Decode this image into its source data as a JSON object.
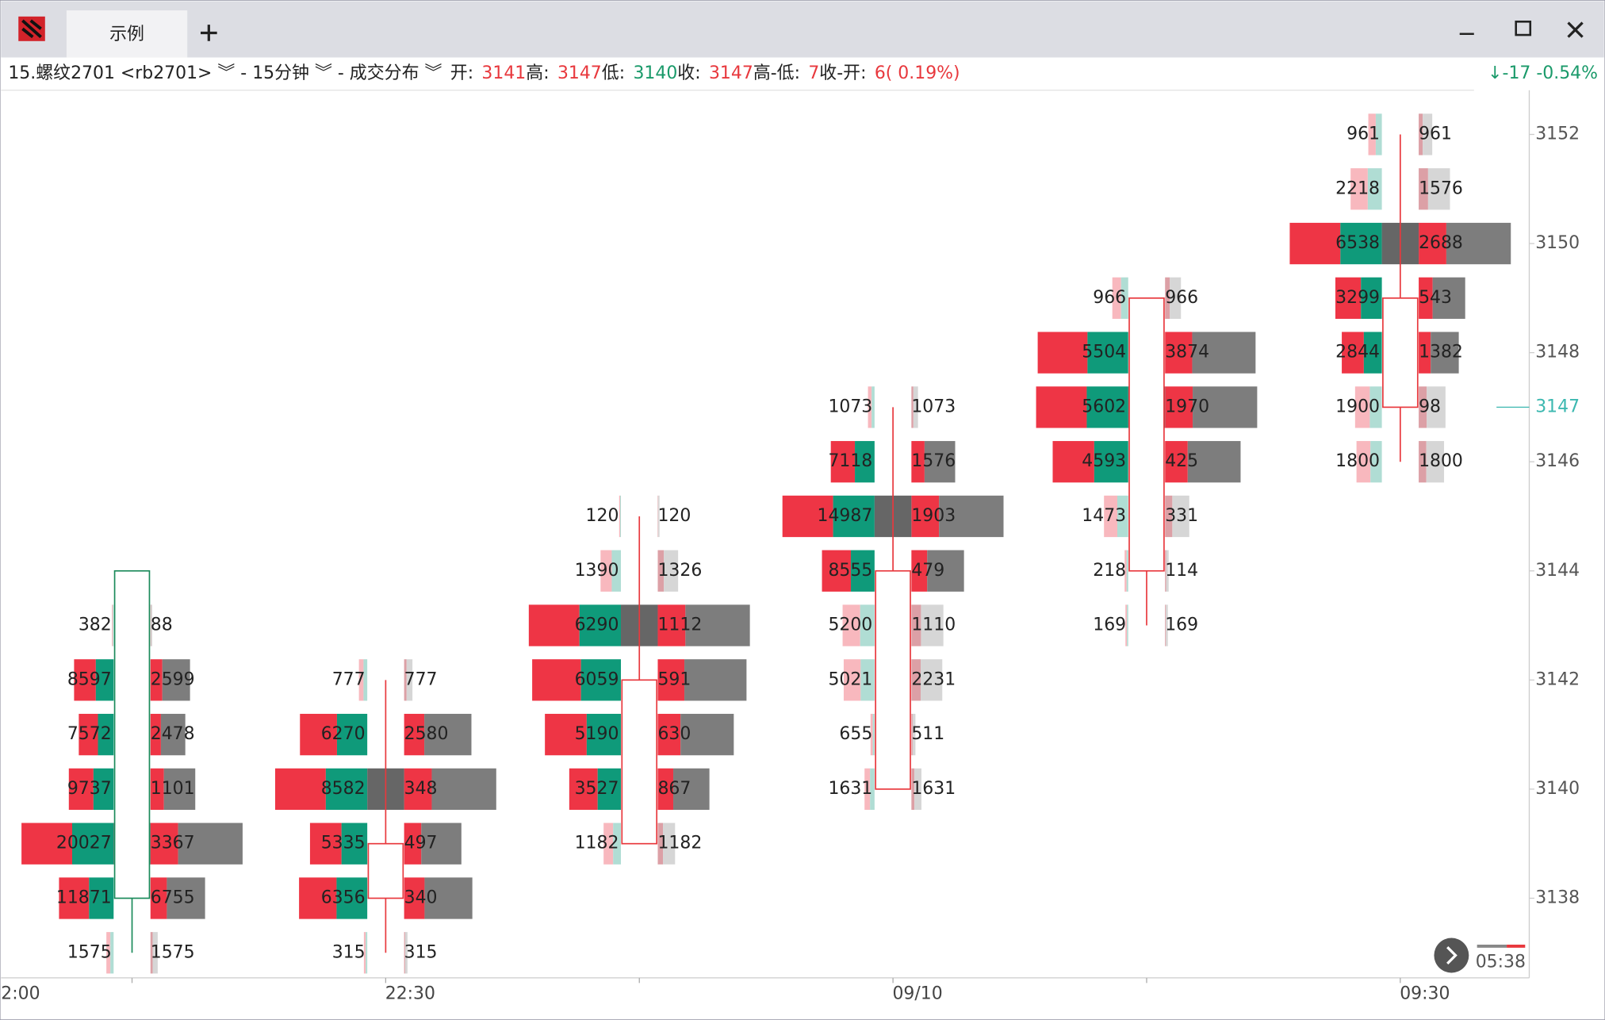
{
  "app": {
    "tab": "示例",
    "header": {
      "symbol": "15.螺纹2701 <rb2701> ︾ - 15分钟 ︾ - 成交分布 ︾",
      "open_label": "开:",
      "open": 3141,
      "high_label": "高:",
      "high": 3147,
      "low_label": "低:",
      "low": 3140,
      "close_label": "收:",
      "close": 3147,
      "range_label": "高-低:",
      "range": 7,
      "change_label": "收-开:",
      "change": "6( 0.19%)",
      "quote": "↓-17 -0.54%"
    },
    "timer": "05:38"
  },
  "chart_data": {
    "type": "footprint",
    "ylim": [
      3136.54,
      3152.81
    ],
    "yticks": [
      3138,
      3140,
      3142,
      3144,
      3146,
      3148,
      3150,
      3152
    ],
    "last_price": 3147,
    "x_edge_label": "2:00",
    "categories": [
      null,
      "22:30",
      null,
      "09/10",
      null,
      "09:30"
    ],
    "candles": [
      {
        "open": 3144,
        "high": 3144,
        "low": 3137,
        "close": 3138,
        "prices": [
          3137,
          3138,
          3139,
          3140,
          3141,
          3142,
          3143
        ],
        "left": [
          1575,
          11871,
          20027,
          9737,
          7572,
          8597,
          382
        ],
        "right": [
          1575,
          6755,
          3367,
          1101,
          2478,
          2599,
          88
        ]
      },
      {
        "open": 3138,
        "high": 3142,
        "low": 3137,
        "close": 3139,
        "prices": [
          3137,
          3138,
          3139,
          3140,
          3141,
          3142
        ],
        "left": [
          315,
          6356,
          5335,
          8582,
          6270,
          777
        ],
        "right": [
          315,
          340,
          497,
          348,
          2580,
          777
        ]
      },
      {
        "open": 3139,
        "high": 3145,
        "low": 3139,
        "close": 3142,
        "prices": [
          3139,
          3140,
          3141,
          3142,
          3143,
          3144,
          3145
        ],
        "left": [
          1182,
          3527,
          5190,
          6059,
          6290,
          1390,
          120
        ],
        "right": [
          1182,
          867,
          630,
          591,
          1112,
          1326,
          120
        ]
      },
      {
        "open": 3140,
        "high": 3147,
        "low": 3140,
        "close": 3144,
        "prices": [
          3140,
          3141,
          3142,
          3143,
          3144,
          3145,
          3146,
          3147
        ],
        "left": [
          1631,
          655,
          5021,
          5200,
          8555,
          14987,
          7118,
          1073
        ],
        "right": [
          1631,
          511,
          2231,
          1110,
          479,
          1903,
          1576,
          1073
        ]
      },
      {
        "open": 3144,
        "high": 3149,
        "low": 3143,
        "close": 3149,
        "prices": [
          3143,
          3144,
          3145,
          3146,
          3147,
          3148,
          3149
        ],
        "left": [
          169,
          218,
          1473,
          4593,
          5602,
          5504,
          966
        ],
        "right": [
          169,
          114,
          331,
          425,
          1970,
          3874,
          966
        ]
      },
      {
        "open": 3147,
        "high": 3152,
        "low": 3146,
        "close": 3149,
        "prices": [
          3146,
          3147,
          3148,
          3149,
          3150,
          3151,
          3152
        ],
        "left": [
          1800,
          1900,
          2844,
          3299,
          6538,
          2218,
          961
        ],
        "right": [
          1800,
          98,
          1382,
          543,
          2688,
          1576,
          961
        ]
      }
    ]
  }
}
